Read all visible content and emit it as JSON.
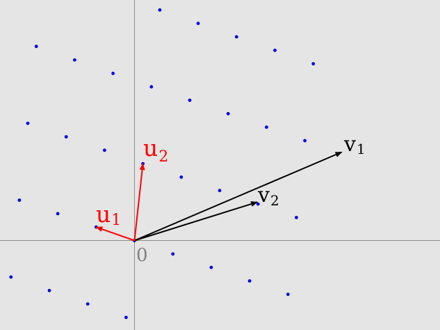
{
  "colors": {
    "background": "#e5e5e5",
    "axis": "#8c8c8c",
    "lattice_point": "#0000ee",
    "reduced_basis": "#ff0000",
    "original_basis": "#000000",
    "origin_label": "#808080"
  },
  "origin_label": "0",
  "basis": {
    "u1": {
      "letter": "u",
      "index": "1",
      "x": -1,
      "y": 0.35
    },
    "u2": {
      "letter": "u",
      "index": "2",
      "x": 0.22,
      "y": 2.0
    },
    "v1": {
      "letter": "v",
      "index": "1",
      "x": 5.4,
      "y": 2.3
    },
    "v2": {
      "letter": "v",
      "index": "2",
      "x": 3.2,
      "y": 1.0
    }
  },
  "lattice": {
    "i_range": [
      -4,
      8
    ],
    "j_range": [
      -3,
      9
    ]
  }
}
